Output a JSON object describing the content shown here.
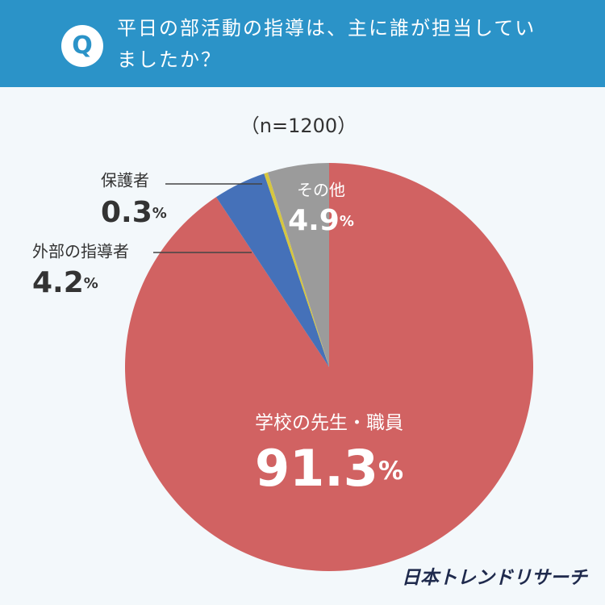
{
  "chart_data": {
    "type": "pie",
    "title": "平日の部活動の指導は、主に誰が担当していましたか？",
    "badge": "Q",
    "subtitle": "（n=1200）",
    "source": "日本トレンドリサーチ",
    "categories": [
      "学校の先生・職員",
      "外部の指導者",
      "保護者",
      "その他"
    ],
    "values": [
      91.3,
      4.2,
      0.3,
      4.9
    ],
    "value_labels": [
      "91.3%",
      "4.2%",
      "0.3%",
      "4.9%"
    ],
    "colors": [
      "#d16262",
      "#4571b9",
      "#d6c63f",
      "#9b9b9b"
    ]
  }
}
